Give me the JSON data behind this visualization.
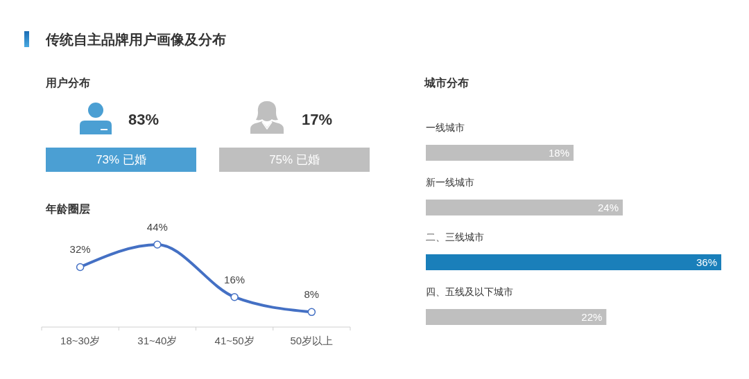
{
  "chart_data": [
    {
      "type": "other",
      "title": "传统自主品牌用户画像及分布"
    },
    {
      "type": "other",
      "title": "用户分布",
      "annotations": [
        "83%",
        "73% 已婚",
        "17%",
        "75% 已婚"
      ],
      "colors": [
        "#4b9fd3",
        "#bfbfbf"
      ]
    },
    {
      "type": "line",
      "title": "年龄圈层",
      "categories": [
        "18~30岁",
        "31~40岁",
        "41~50岁",
        "50岁以上"
      ],
      "values": [
        32,
        44,
        16,
        8
      ],
      "value_labels": [
        "32%",
        "44%",
        "16%",
        "8%"
      ],
      "color": "#4470c4",
      "marker": "circle",
      "tick_labels": "x"
    },
    {
      "type": "bar",
      "title": "城市分布",
      "orientation": "horizontal",
      "categories": [
        "一线城市",
        "新一线城市",
        "二、三线城市",
        "四、五线及以下城市"
      ],
      "values": [
        18,
        24,
        36,
        22
      ],
      "value_labels": [
        "18%",
        "24%",
        "36%",
        "22%"
      ],
      "colors": [
        "#bfbfbf",
        "#bfbfbf",
        "#1a7fba",
        "#bfbfbf"
      ],
      "tick_labels": "y"
    }
  ]
}
